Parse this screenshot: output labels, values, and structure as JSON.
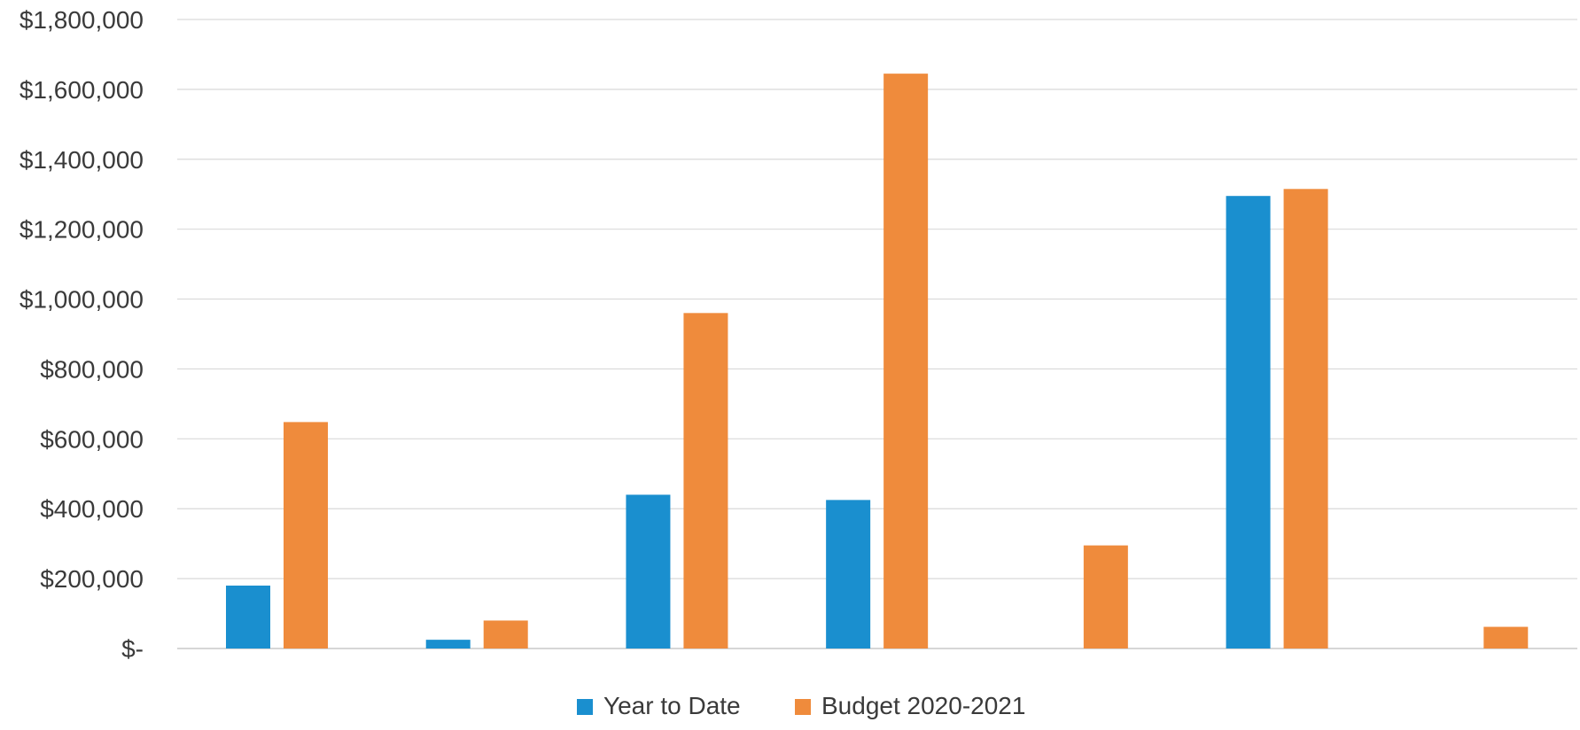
{
  "chart_data": {
    "type": "bar",
    "categories": [
      "",
      "",
      "",
      "",
      "",
      "",
      ""
    ],
    "series": [
      {
        "name": "Year to Date",
        "color": "#1a8fcf",
        "values": [
          180000,
          25000,
          440000,
          425000,
          0,
          1295000,
          0
        ]
      },
      {
        "name": "Budget 2020-2021",
        "color": "#ef8b3c",
        "values": [
          648000,
          80000,
          960000,
          1645000,
          295000,
          1315000,
          62000
        ]
      }
    ],
    "ylim": [
      0,
      1800000
    ],
    "yticks": [
      0,
      200000,
      400000,
      600000,
      800000,
      1000000,
      1200000,
      1400000,
      1600000,
      1800000
    ],
    "ytick_labels": [
      "$-",
      "$200,000",
      "$400,000",
      "$600,000",
      "$800,000",
      "$1,000,000",
      "$1,200,000",
      "$1,400,000",
      "$1,600,000",
      "$1,800,000"
    ],
    "grid": true,
    "legend_position": "bottom-center",
    "title": "",
    "xlabel": "",
    "ylabel": ""
  }
}
